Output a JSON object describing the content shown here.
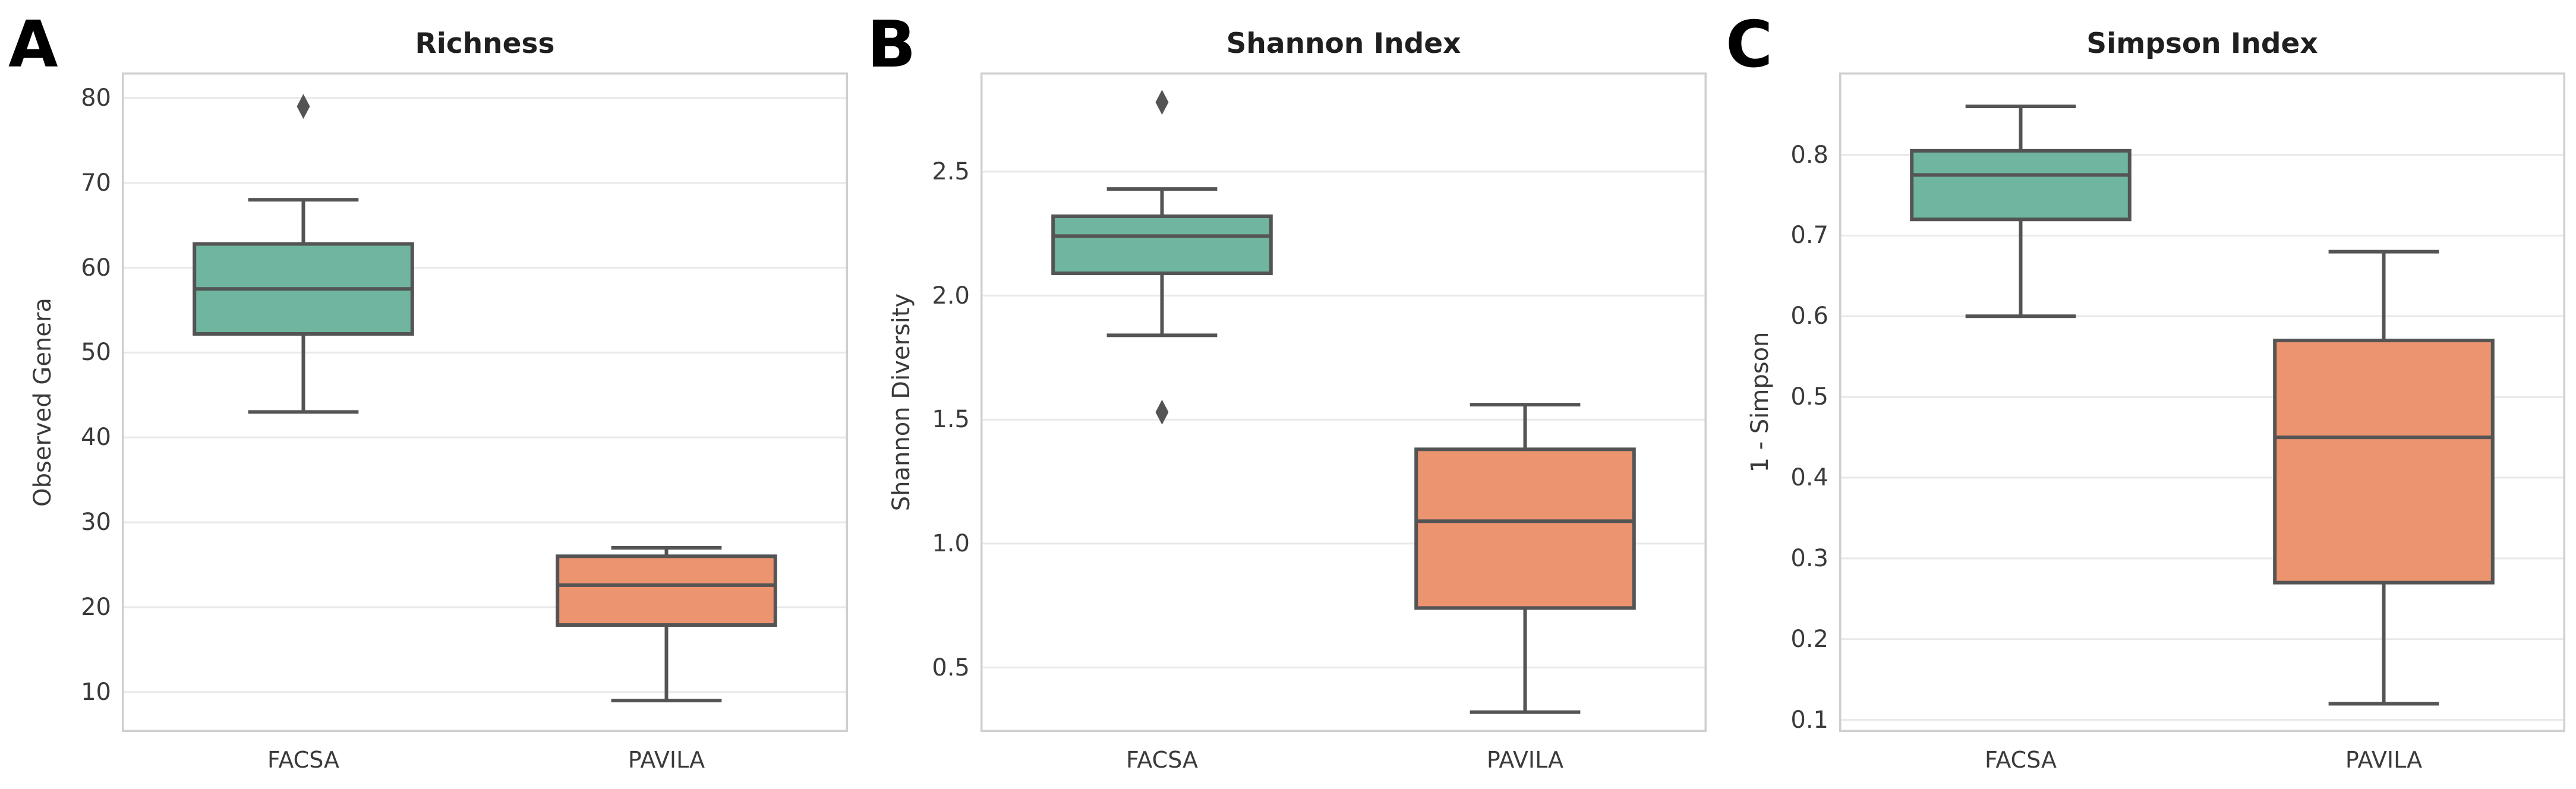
{
  "colors": {
    "facsa_box": "#6FB5A0",
    "pavila_box": "#EC9370",
    "box_edge": "#545454",
    "median_line": "#545454",
    "outlier": "#545454",
    "grid": "#E8E8E8",
    "spine": "#CFCFCF",
    "background": "#FFFFFF",
    "title_text": "#1F1F1F",
    "tick_text": "#3A3A3A"
  },
  "chart_data": [
    {
      "type": "boxplot",
      "panel_label": "A",
      "title": "Richness",
      "ylabel": "Observed Genera",
      "categories": [
        "FACSA",
        "PAVILA"
      ],
      "ylim": [
        5.3,
        83.0
      ],
      "yticks": [
        10,
        20,
        30,
        40,
        50,
        60,
        70,
        80
      ],
      "ytick_labels": [
        "10",
        "20",
        "30",
        "40",
        "50",
        "60",
        "70",
        "80"
      ],
      "grid": true,
      "legend": "none",
      "series": [
        {
          "name": "FACSA",
          "color": "#6FB5A0",
          "whisker_low": 43,
          "q1": 52.2,
          "median": 57.5,
          "q3": 62.8,
          "whisker_high": 68,
          "outliers": [
            79
          ]
        },
        {
          "name": "PAVILA",
          "color": "#EC9370",
          "whisker_low": 9,
          "q1": 17.9,
          "median": 22.6,
          "q3": 26.0,
          "whisker_high": 27,
          "outliers": []
        }
      ]
    },
    {
      "type": "boxplot",
      "panel_label": "B",
      "title": "Shannon Index",
      "ylabel": "Shannon Diversity",
      "categories": [
        "FACSA",
        "PAVILA"
      ],
      "ylim": [
        0.24,
        2.9
      ],
      "yticks": [
        0.5,
        1.0,
        1.5,
        2.0,
        2.5
      ],
      "ytick_labels": [
        "0.5",
        "1.0",
        "1.5",
        "2.0",
        "2.5"
      ],
      "grid": true,
      "legend": "none",
      "series": [
        {
          "name": "FACSA",
          "color": "#6FB5A0",
          "whisker_low": 1.84,
          "q1": 2.09,
          "median": 2.24,
          "q3": 2.32,
          "whisker_high": 2.43,
          "outliers": [
            2.78,
            1.53
          ]
        },
        {
          "name": "PAVILA",
          "color": "#EC9370",
          "whisker_low": 0.32,
          "q1": 0.74,
          "median": 1.09,
          "q3": 1.38,
          "whisker_high": 1.56,
          "outliers": []
        }
      ]
    },
    {
      "type": "boxplot",
      "panel_label": "C",
      "title": "Simpson Index",
      "ylabel": "1 - Simpson",
      "categories": [
        "FACSA",
        "PAVILA"
      ],
      "ylim": [
        0.085,
        0.902
      ],
      "yticks": [
        0.1,
        0.2,
        0.3,
        0.4,
        0.5,
        0.6,
        0.7,
        0.8
      ],
      "ytick_labels": [
        "0.1",
        "0.2",
        "0.3",
        "0.4",
        "0.5",
        "0.6",
        "0.7",
        "0.8"
      ],
      "grid": true,
      "legend": "none",
      "series": [
        {
          "name": "FACSA",
          "color": "#6FB5A0",
          "whisker_low": 0.6,
          "q1": 0.72,
          "median": 0.775,
          "q3": 0.805,
          "whisker_high": 0.86,
          "outliers": []
        },
        {
          "name": "PAVILA",
          "color": "#EC9370",
          "whisker_low": 0.12,
          "q1": 0.27,
          "median": 0.45,
          "q3": 0.57,
          "whisker_high": 0.68,
          "outliers": []
        }
      ]
    }
  ]
}
